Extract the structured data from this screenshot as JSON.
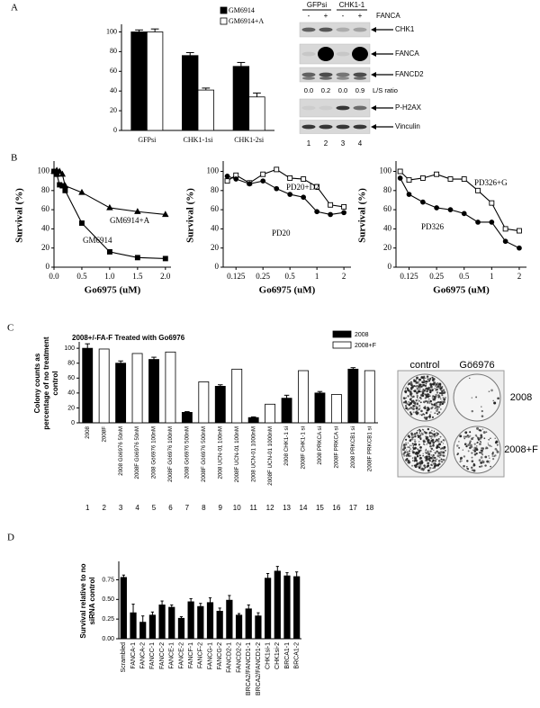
{
  "panel_labels": [
    "A",
    "B",
    "C",
    "D"
  ],
  "chart_data": [
    {
      "type": "bar",
      "categories": [
        "GFPsi",
        "CHK1-1si",
        "CHK1-2si"
      ],
      "series": [
        {
          "name": "GM6914",
          "color": "#000000",
          "values": [
            100,
            76,
            65
          ],
          "errors": [
            2,
            3,
            4
          ]
        },
        {
          "name": "GM6914+A",
          "color": "#ffffff",
          "values": [
            100,
            41,
            34
          ],
          "errors": [
            3,
            2,
            4
          ]
        }
      ],
      "ylim": [
        0,
        105
      ],
      "yticks": [
        0,
        20,
        40,
        60,
        80,
        100
      ],
      "legend": "upper right"
    },
    {
      "type": "line",
      "xlabel": "Go6975 (uM)",
      "ylabel": "Survival (%)",
      "x": [
        0,
        0.05,
        0.1,
        0.15,
        0.2,
        0.5,
        1,
        1.5,
        2
      ],
      "xlim": [
        0,
        2.1
      ],
      "xticks": [
        {
          "value": 0,
          "label": "0.0"
        },
        {
          "value": 0.5,
          "label": "0.5"
        },
        {
          "value": 1,
          "label": "1.0"
        },
        {
          "value": 1.5,
          "label": "1.5"
        },
        {
          "value": 2,
          "label": "2.0"
        }
      ],
      "ylim": [
        0,
        108
      ],
      "yticks": [
        0,
        20,
        40,
        60,
        80,
        100
      ],
      "log_x": false,
      "series": [
        {
          "name": "GM6914+A",
          "color": "#000000",
          "marker": "triangle",
          "marker_fill": "#000000",
          "values": [
            100,
            101,
            100,
            97,
            85,
            78,
            62,
            58,
            55
          ]
        },
        {
          "name": "GM6914",
          "color": "#000000",
          "marker": "square",
          "marker_fill": "#000000",
          "values": [
            100,
            97,
            86,
            85,
            80,
            46,
            16,
            10,
            9
          ]
        }
      ]
    },
    {
      "type": "line",
      "xlabel": "Go6975 (uM)",
      "ylabel": "Survival (%)",
      "x": [
        0.1,
        0.125,
        0.177,
        0.25,
        0.354,
        0.5,
        0.707,
        1,
        1.414,
        2
      ],
      "xlim": [
        0.09,
        2.4
      ],
      "xticks": [
        0.125,
        0.25,
        0.5,
        1,
        2
      ],
      "log_x": true,
      "ylim": [
        0,
        108
      ],
      "yticks": [
        0,
        20,
        40,
        60,
        80,
        100
      ],
      "series": [
        {
          "name": "PD20+D2",
          "color": "#000000",
          "marker": "square",
          "marker_fill": "#ffffff",
          "values": [
            90,
            96,
            88,
            97,
            102,
            93,
            92,
            84,
            65,
            63
          ]
        },
        {
          "name": "PD20",
          "color": "#000000",
          "marker": "circle",
          "marker_fill": "#000000",
          "values": [
            95,
            92,
            87,
            90,
            82,
            76,
            73,
            58,
            55,
            57
          ]
        }
      ]
    },
    {
      "type": "line",
      "xlabel": "Go6975 (uM)",
      "ylabel": "Survival (%)",
      "x": [
        0.1,
        0.125,
        0.177,
        0.25,
        0.354,
        0.5,
        0.707,
        1,
        1.414,
        2
      ],
      "xlim": [
        0.09,
        2.4
      ],
      "xticks": [
        0.125,
        0.25,
        0.5,
        1,
        2
      ],
      "log_x": true,
      "ylim": [
        0,
        108
      ],
      "yticks": [
        0,
        20,
        40,
        60,
        80,
        100
      ],
      "series": [
        {
          "name": "PD326+G",
          "color": "#000000",
          "marker": "square",
          "marker_fill": "#ffffff",
          "values": [
            100,
            91,
            93,
            97,
            92,
            92,
            80,
            67,
            40,
            38
          ]
        },
        {
          "name": "PD326",
          "color": "#000000",
          "marker": "circle",
          "marker_fill": "#000000",
          "values": [
            93,
            76,
            68,
            62,
            60,
            56,
            47,
            47,
            27,
            20
          ]
        }
      ]
    },
    {
      "type": "bar",
      "title": "2008+/-FA-F Treated with Go6976",
      "ylabel": "Colony counts as percentage of no treatment control",
      "categories": [
        "2008",
        "2008F",
        "2008 Gö6976 50nM",
        "2008F Gö6976 50nM",
        "2008 Gö6976 100nM",
        "2008F Gö6976 100nM",
        "2008 Gö6976 500nM",
        "2008F Gö6976 500nM",
        "2008 UCN-01 100nM",
        "2008F UCN-01 100nM",
        "2008 UCN-01 1000nM",
        "2008F UCN-01 1000nM",
        "2008 CHK1-1 si",
        "2008F CHK1-1 si",
        "2008 PRKCA si",
        "2008F PRKCA si",
        "2008 PRKCB1 si",
        "2008F PRKCB1 si"
      ],
      "lane_labels": [
        1,
        2,
        3,
        4,
        5,
        6,
        7,
        8,
        9,
        10,
        11,
        12,
        13,
        14,
        15,
        16,
        17,
        18
      ],
      "series": [
        {
          "name": "2008",
          "color": "#000000",
          "values": [
            100,
            null,
            80,
            null,
            85,
            null,
            14,
            null,
            49,
            null,
            7,
            null,
            33,
            null,
            40,
            null,
            72,
            null
          ],
          "errors": [
            6,
            null,
            3,
            null,
            3,
            null,
            1,
            null,
            2,
            null,
            1,
            null,
            4,
            null,
            2,
            null,
            2,
            null
          ]
        },
        {
          "name": "2008+F",
          "color": "#ffffff",
          "values": [
            null,
            99,
            null,
            93,
            null,
            95,
            null,
            55,
            null,
            72,
            null,
            25,
            null,
            70,
            null,
            38,
            null,
            70
          ]
        }
      ],
      "ylim": [
        0,
        105
      ],
      "yticks": [
        0,
        20,
        40,
        60,
        80,
        100
      ],
      "legend": "upper right"
    },
    {
      "type": "bar",
      "ylabel": "Survival relative to no siRNA control",
      "categories": [
        "Scrambled",
        "FANCA-1",
        "FANCA-2",
        "FANCC-1",
        "FANCC-2",
        "FANCE-1",
        "FANCE-2",
        "FANCF-1",
        "FANCF-2",
        "FANCG-1",
        "FANCG-2",
        "FANCD2-1",
        "FANCD2-2",
        "BRCA2/FANCD1-1",
        "BRCA2/FANCD1-2",
        "CHK1si-1",
        "CHK1si-2",
        "BRCA1-1",
        "BRCA1-2"
      ],
      "series": [
        {
          "color": "#000000",
          "values": [
            0.78,
            0.33,
            0.21,
            0.3,
            0.43,
            0.4,
            0.26,
            0.47,
            0.41,
            0.46,
            0.35,
            0.49,
            0.3,
            0.38,
            0.29,
            0.77,
            0.86,
            0.8,
            0.79
          ],
          "errors": [
            0.03,
            0.11,
            0.08,
            0.04,
            0.05,
            0.03,
            0.02,
            0.04,
            0.04,
            0.06,
            0.04,
            0.06,
            0.02,
            0.05,
            0.04,
            0.06,
            0.06,
            0.04,
            0.06
          ]
        }
      ],
      "ylim": [
        0,
        0.95
      ],
      "yticks": [
        {
          "value": 0,
          "label": "0.00"
        },
        {
          "value": 0.25,
          "label": "0.25"
        },
        {
          "value": 0.5,
          "label": "0.50"
        },
        {
          "value": 0.75,
          "label": "0.75"
        }
      ]
    }
  ],
  "blot": {
    "groups": [
      "GFPsi",
      "CHK1-1"
    ],
    "treatment": "FANCA",
    "signs": [
      "-",
      "+",
      "-",
      "+"
    ],
    "bands": [
      "CHK1",
      "FANCA",
      "FANCD2",
      "P-H2AX",
      "Vinculin"
    ],
    "ratio_label": "L/S ratio",
    "ratios": [
      "0.0",
      "0.2",
      "0.0",
      "0.9"
    ],
    "lanes": [
      "1",
      "2",
      "3",
      "4"
    ]
  },
  "colony": {
    "columns": [
      "control",
      "Gö6976"
    ],
    "rows": [
      "2008",
      "2008+F"
    ]
  }
}
